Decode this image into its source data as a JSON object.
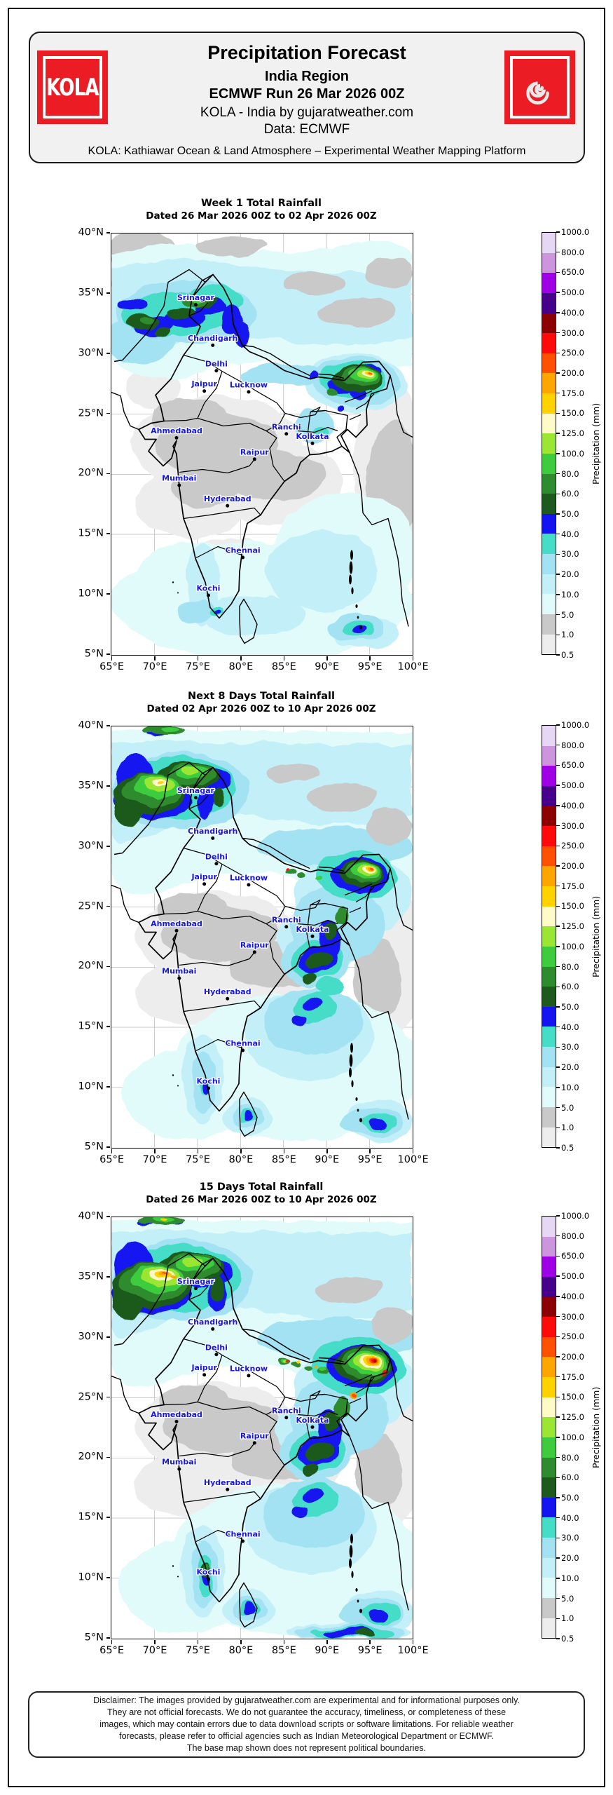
{
  "header": {
    "logo_text": "KOLA",
    "title": "Precipitation Forecast",
    "region": "India Region",
    "run": "ECMWF Run 26 Mar 2026 00Z",
    "byline": "KOLA - India by gujaratweather.com",
    "data_source": "Data: ECMWF",
    "tagline": "KOLA: Kathiawar Ocean & Land Atmosphere – Experimental Weather Mapping Platform"
  },
  "maps": [
    {
      "id": "week1",
      "title": "Week 1 Total Rainfall",
      "subtitle": "Dated 26 Mar 2026 00Z to 02 Apr 2026 00Z"
    },
    {
      "id": "next8",
      "title": "Next 8 Days Total Rainfall",
      "subtitle": "Dated 02 Apr 2026 00Z to 10 Apr 2026 00Z"
    },
    {
      "id": "days15",
      "title": "15 Days Total Rainfall",
      "subtitle": "Dated 26 Mar 2026 00Z to 10 Apr 2026 00Z"
    }
  ],
  "axes": {
    "lat_ticks": [
      "40°N",
      "35°N",
      "30°N",
      "25°N",
      "20°N",
      "15°N",
      "10°N",
      "5°N"
    ],
    "lon_ticks": [
      "65°E",
      "70°E",
      "75°E",
      "80°E",
      "85°E",
      "90°E",
      "95°E",
      "100°E"
    ]
  },
  "colorbar": {
    "label": "Precipitation (mm)",
    "tick_values": [
      "0.5",
      "1.0",
      "5.0",
      "10.0",
      "20.0",
      "30.0",
      "40.0",
      "50.0",
      "60.0",
      "80.0",
      "100.0",
      "125.0",
      "150.0",
      "175.0",
      "200.0",
      "250.0",
      "300.0",
      "400.0",
      "500.0",
      "650.0",
      "800.0",
      "1000.0"
    ],
    "segment_colors": [
      "#ededed",
      "#c9c9c9",
      "#e1fafa",
      "#c3eff8",
      "#a3e2f2",
      "#45dcc8",
      "#1414f0",
      "#1e5a1e",
      "#2e8b2e",
      "#3ecc3e",
      "#9be632",
      "#fffac8",
      "#ffd200",
      "#ffa500",
      "#ff5000",
      "#ff0a0a",
      "#8b0000",
      "#46008c",
      "#a000e6",
      "#cd96dc",
      "#e6d7f5"
    ]
  },
  "cities": [
    {
      "name": "Srinagar",
      "lon": 74.8,
      "lat": 34.1
    },
    {
      "name": "Chandigarh",
      "lon": 76.78,
      "lat": 30.73
    },
    {
      "name": "Delhi",
      "lon": 77.2,
      "lat": 28.61
    },
    {
      "name": "Jaipur",
      "lon": 75.8,
      "lat": 26.92
    },
    {
      "name": "Lucknow",
      "lon": 80.95,
      "lat": 26.85
    },
    {
      "name": "Ahmedabad",
      "lon": 72.57,
      "lat": 23.03
    },
    {
      "name": "Ranchi",
      "lon": 85.33,
      "lat": 23.36
    },
    {
      "name": "Kolkata",
      "lon": 88.36,
      "lat": 22.57
    },
    {
      "name": "Raipur",
      "lon": 81.63,
      "lat": 21.25
    },
    {
      "name": "Mumbai",
      "lon": 72.88,
      "lat": 19.08
    },
    {
      "name": "Hyderabad",
      "lon": 78.49,
      "lat": 17.38
    },
    {
      "name": "Chennai",
      "lon": 80.27,
      "lat": 13.08
    },
    {
      "name": "Kochi",
      "lon": 76.27,
      "lat": 9.93
    }
  ],
  "disclaimer": {
    "lines": [
      "Disclaimer: The images provided by gujaratweather.com are experimental and for informational purposes only.",
      "They are not official forecasts. We do not guarantee the accuracy, timeliness, or completeness of these",
      "images, which may contain errors due to data download scripts or software limitations. For reliable weather",
      "forecasts, please refer to official agencies such as Indian Meteorological Department or ECMWF.",
      "The base map shown does not represent political boundaries."
    ]
  },
  "chart_data": {
    "type": "heatmap",
    "panels": [
      "Week 1 Total Rainfall",
      "Next 8 Days Total Rainfall",
      "15 Days Total Rainfall"
    ],
    "lon_range_deg_east": [
      65,
      100
    ],
    "lat_range_deg_north": [
      5,
      40
    ],
    "scale_label": "Precipitation (mm)",
    "scale_boundaries_mm": [
      0.5,
      1,
      5,
      10,
      20,
      30,
      40,
      50,
      60,
      80,
      100,
      125,
      150,
      175,
      200,
      250,
      300,
      400,
      500,
      650,
      800,
      1000
    ],
    "legend_position": "right"
  }
}
